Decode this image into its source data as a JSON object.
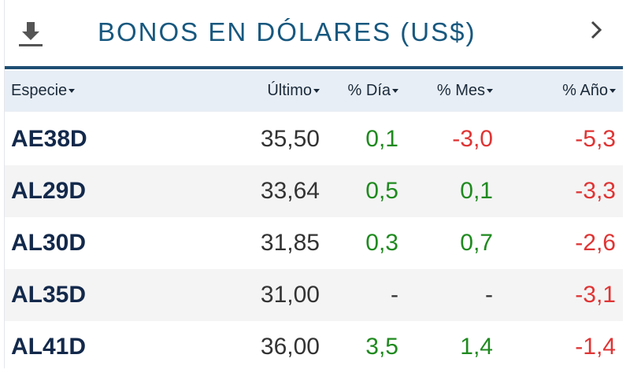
{
  "header": {
    "title": "BONOS EN DÓLARES (US$)"
  },
  "table": {
    "columns": [
      "Especie",
      "Último",
      "% Día",
      "% Mes",
      "% Año"
    ],
    "rows": [
      [
        "AE38D",
        "35,50",
        "0,1",
        "-3,0",
        "-5,3"
      ],
      [
        "AL29D",
        "33,64",
        "0,5",
        "0,1",
        "-3,3"
      ],
      [
        "AL30D",
        "31,85",
        "0,3",
        "0,7",
        "-2,6"
      ],
      [
        "AL35D",
        "31,00",
        "-",
        "-",
        "-3,1"
      ],
      [
        "AL41D",
        "36,00",
        "3,5",
        "1,4",
        "-1,4"
      ]
    ]
  }
}
